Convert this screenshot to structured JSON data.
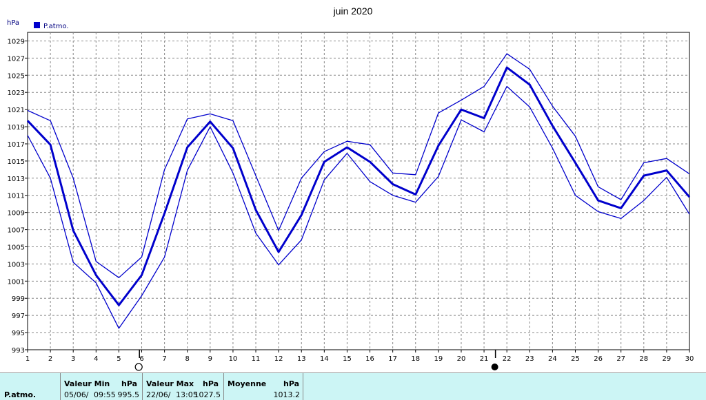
{
  "chart_data": {
    "type": "line",
    "title": "juin 2020",
    "ylabel": "hPa",
    "legend": {
      "label": "P.atmo.",
      "color": "#0000CC",
      "placement": "top-left"
    },
    "x": [
      1,
      2,
      3,
      4,
      5,
      6,
      7,
      8,
      9,
      10,
      11,
      12,
      13,
      14,
      15,
      16,
      17,
      18,
      19,
      20,
      21,
      22,
      23,
      24,
      25,
      26,
      27,
      28,
      29,
      30
    ],
    "xlim": [
      1,
      30
    ],
    "ylim": [
      993,
      1030
    ],
    "yticks": [
      993,
      995,
      997,
      999,
      1001,
      1003,
      1005,
      1007,
      1009,
      1011,
      1013,
      1015,
      1017,
      1019,
      1021,
      1023,
      1025,
      1027,
      1029
    ],
    "grid": true,
    "series": [
      {
        "role": "max",
        "width": 1.3,
        "values": [
          1020.9,
          1019.7,
          1013.0,
          1003.3,
          1001.4,
          1003.8,
          1014.0,
          1019.9,
          1020.5,
          1019.7,
          1013.3,
          1006.9,
          1013.0,
          1016.1,
          1017.3,
          1016.9,
          1013.6,
          1013.4,
          1020.6,
          1022.1,
          1023.7,
          1027.5,
          1025.7,
          1021.4,
          1017.9,
          1012.0,
          1010.5,
          1014.8,
          1015.3,
          1013.5
        ]
      },
      {
        "role": "mean",
        "width": 3,
        "values": [
          1019.7,
          1016.9,
          1006.9,
          1001.7,
          998.2,
          1001.7,
          1008.9,
          1016.6,
          1019.6,
          1016.5,
          1009.3,
          1004.4,
          1008.7,
          1014.9,
          1016.6,
          1014.9,
          1012.3,
          1011.1,
          1016.8,
          1021.0,
          1020.0,
          1025.9,
          1023.9,
          1019.1,
          1014.8,
          1010.4,
          1009.5,
          1013.3,
          1013.9,
          1010.8
        ]
      },
      {
        "role": "min",
        "width": 1.3,
        "values": [
          1018.0,
          1013.0,
          1003.2,
          1000.8,
          995.5,
          999.3,
          1003.8,
          1013.9,
          1019.0,
          1013.6,
          1006.6,
          1002.9,
          1005.8,
          1012.8,
          1015.9,
          1012.6,
          1011.0,
          1010.2,
          1013.2,
          1019.8,
          1018.4,
          1023.7,
          1021.3,
          1016.5,
          1011.0,
          1009.1,
          1008.3,
          1010.4,
          1013.1,
          1008.8
        ]
      }
    ],
    "moon_markers": [
      {
        "x": 5.9,
        "phase": "full-moon",
        "symbol": "○"
      },
      {
        "x": 21.5,
        "phase": "new-moon",
        "symbol": "●"
      }
    ]
  },
  "footer": {
    "row_label": "P.atmo.",
    "min": {
      "header": "Valeur Min",
      "unit": "hPa",
      "date": "05/06/",
      "time": "09:55",
      "value": "995.5"
    },
    "max": {
      "header": "Valeur Max",
      "unit": "hPa",
      "date": "22/06/",
      "time": "13:05",
      "value": "1027.5"
    },
    "mean": {
      "header": "Moyenne",
      "unit": "hPa",
      "value": "1013.2"
    }
  },
  "colors": {
    "series": "#0000CC",
    "grid": "#888888",
    "footer_bg": "#CCF5F5"
  }
}
